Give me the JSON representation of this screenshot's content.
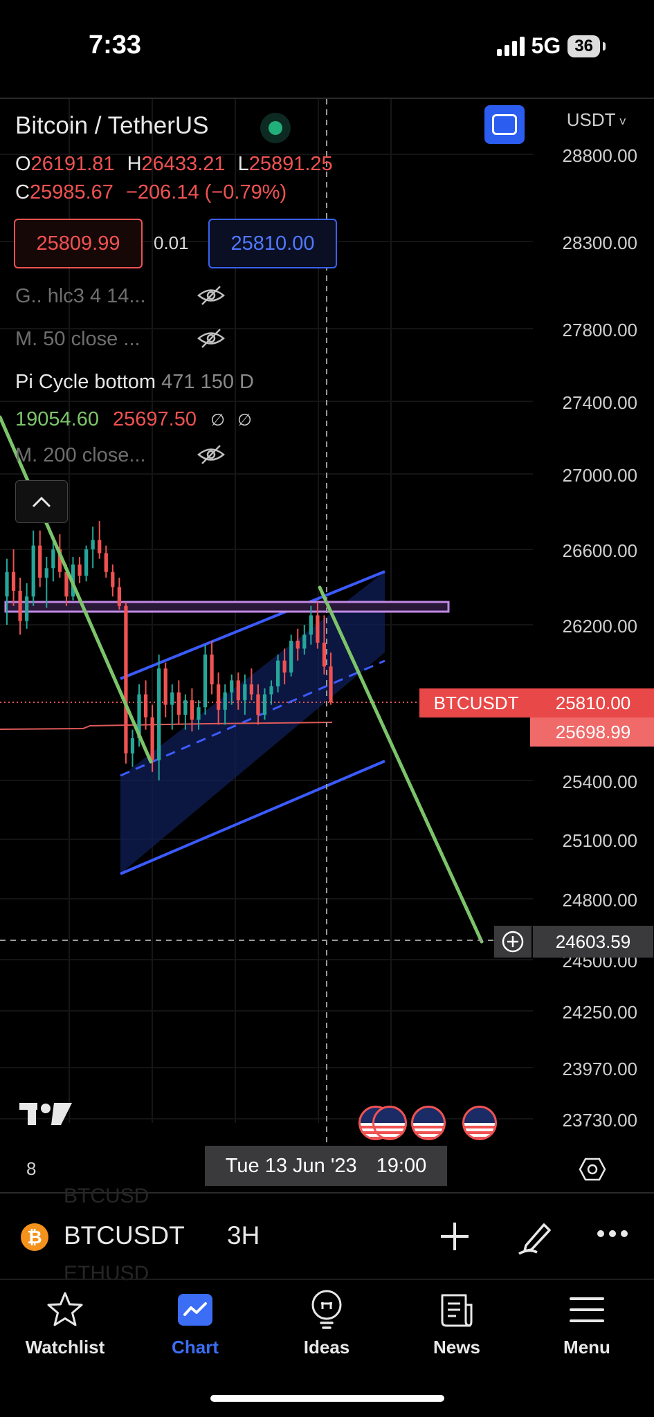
{
  "status_bar": {
    "time": "7:33",
    "network": "5G",
    "battery": "36"
  },
  "symbol_header": {
    "title": "Bitcoin / TetherUS",
    "currency": "USDT",
    "ohlc": {
      "o_label": "O",
      "o": "26191.81",
      "h_label": "H",
      "h": "26433.21",
      "l_label": "L",
      "l": "25891.25",
      "c_label": "C",
      "c": "25985.67",
      "change": "−206.14 (−0.79%)"
    },
    "bid": "25809.99",
    "spread": "0.01",
    "ask": "25810.00"
  },
  "indicators": {
    "ind1": "G.. hlc3 4 14...",
    "ind2": "M. 50 close ...",
    "pi_name": "Pi Cycle bottom",
    "pi_params": "471 150 D",
    "pi_val1": "19054.60",
    "pi_val2": "25697.50",
    "pi_na1": "∅",
    "pi_na2": "∅",
    "ind3": "M. 200 close..."
  },
  "price_axis": {
    "ticks": [
      "28800.00",
      "28300.00",
      "27800.00",
      "27400.00",
      "27000.00",
      "26600.00",
      "26200.00",
      "25400.00",
      "25100.00",
      "24800.00",
      "24500.00",
      "24250.00",
      "23970.00",
      "23730.00"
    ]
  },
  "price_labels": {
    "symbol_tag": "BTCUSDT",
    "last_price": "25810.00",
    "pi_line_price": "25698.99",
    "crosshair_price": "24603.59"
  },
  "time_axis": {
    "left_label": "8",
    "date": "Tue 13 Jun '23",
    "time": "19:00"
  },
  "ghost_symbols": {
    "above": "BTCUSD",
    "below": "ETHUSD"
  },
  "symbol_bar": {
    "symbol": "BTCUSDT",
    "interval": "3H",
    "icon_letter": "₿"
  },
  "tabs": [
    {
      "label": "Watchlist",
      "icon": "star-icon"
    },
    {
      "label": "Chart",
      "icon": "chart-icon"
    },
    {
      "label": "Ideas",
      "icon": "lightbulb-icon"
    },
    {
      "label": "News",
      "icon": "news-icon"
    },
    {
      "label": "Menu",
      "icon": "menu-icon"
    }
  ],
  "active_tab": "Chart",
  "colors": {
    "up": "#26a69a",
    "down": "#f05252",
    "accent": "#2b5ef0",
    "channel": "#3b5bff",
    "trendline": "#7cc46a",
    "resistance": "#c18ae6"
  },
  "chart_data": {
    "type": "candlestick",
    "interval": "3H",
    "ylim": [
      23730,
      28800
    ],
    "y_ticks": [
      28800,
      28300,
      27800,
      27400,
      27000,
      26600,
      26200,
      25400,
      25100,
      24800,
      24500,
      24250,
      23970,
      23730
    ],
    "last_price": 25810.0,
    "pi_cycle_line": 25698.99,
    "crosshair_price": 24603.59,
    "resistance_zone": [
      26260,
      26310
    ],
    "candles": [
      {
        "o": 26350,
        "h": 26550,
        "l": 26200,
        "c": 26480
      },
      {
        "o": 26480,
        "h": 26600,
        "l": 26300,
        "c": 26380
      },
      {
        "o": 26380,
        "h": 26450,
        "l": 26150,
        "c": 26220
      },
      {
        "o": 26220,
        "h": 26420,
        "l": 26180,
        "c": 26350
      },
      {
        "o": 26350,
        "h": 26700,
        "l": 26300,
        "c": 26620
      },
      {
        "o": 26620,
        "h": 26700,
        "l": 26400,
        "c": 26450
      },
      {
        "o": 26450,
        "h": 26560,
        "l": 26290,
        "c": 26500
      },
      {
        "o": 26500,
        "h": 26650,
        "l": 26430,
        "c": 26600
      },
      {
        "o": 26600,
        "h": 26680,
        "l": 26450,
        "c": 26480
      },
      {
        "o": 26480,
        "h": 26520,
        "l": 26300,
        "c": 26350
      },
      {
        "o": 26350,
        "h": 26560,
        "l": 26330,
        "c": 26520
      },
      {
        "o": 26520,
        "h": 26560,
        "l": 26420,
        "c": 26460
      },
      {
        "o": 26460,
        "h": 26620,
        "l": 26430,
        "c": 26600
      },
      {
        "o": 26600,
        "h": 26720,
        "l": 26500,
        "c": 26650
      },
      {
        "o": 26650,
        "h": 26750,
        "l": 26550,
        "c": 26580
      },
      {
        "o": 26580,
        "h": 26620,
        "l": 26450,
        "c": 26480
      },
      {
        "o": 26480,
        "h": 26520,
        "l": 26350,
        "c": 26400
      },
      {
        "o": 26400,
        "h": 26450,
        "l": 26280,
        "c": 26300
      },
      {
        "o": 26300,
        "h": 26320,
        "l": 25500,
        "c": 25560
      },
      {
        "o": 25560,
        "h": 25700,
        "l": 25480,
        "c": 25650
      },
      {
        "o": 25650,
        "h": 25900,
        "l": 25600,
        "c": 25850
      },
      {
        "o": 25850,
        "h": 25920,
        "l": 25700,
        "c": 25750
      },
      {
        "o": 25750,
        "h": 25800,
        "l": 25450,
        "c": 25520
      },
      {
        "o": 25520,
        "h": 26050,
        "l": 25400,
        "c": 25980
      },
      {
        "o": 25980,
        "h": 26010,
        "l": 25750,
        "c": 25800
      },
      {
        "o": 25800,
        "h": 25900,
        "l": 25700,
        "c": 25860
      },
      {
        "o": 25860,
        "h": 25920,
        "l": 25720,
        "c": 25760
      },
      {
        "o": 25760,
        "h": 25850,
        "l": 25700,
        "c": 25820
      },
      {
        "o": 25820,
        "h": 25880,
        "l": 25690,
        "c": 25740
      },
      {
        "o": 25740,
        "h": 25820,
        "l": 25700,
        "c": 25790
      },
      {
        "o": 25790,
        "h": 26100,
        "l": 25760,
        "c": 26050
      },
      {
        "o": 26050,
        "h": 26120,
        "l": 25850,
        "c": 25900
      },
      {
        "o": 25900,
        "h": 25960,
        "l": 25720,
        "c": 25780
      },
      {
        "o": 25780,
        "h": 25900,
        "l": 25720,
        "c": 25860
      },
      {
        "o": 25860,
        "h": 25950,
        "l": 25800,
        "c": 25920
      },
      {
        "o": 25920,
        "h": 25960,
        "l": 25780,
        "c": 25820
      },
      {
        "o": 25820,
        "h": 25950,
        "l": 25760,
        "c": 25900
      },
      {
        "o": 25900,
        "h": 25980,
        "l": 25820,
        "c": 25850
      },
      {
        "o": 25850,
        "h": 25900,
        "l": 25720,
        "c": 25760
      },
      {
        "o": 25760,
        "h": 25880,
        "l": 25740,
        "c": 25850
      },
      {
        "o": 25850,
        "h": 25920,
        "l": 25800,
        "c": 25890
      },
      {
        "o": 25890,
        "h": 26050,
        "l": 25860,
        "c": 26020
      },
      {
        "o": 26020,
        "h": 26080,
        "l": 25900,
        "c": 25960
      },
      {
        "o": 25960,
        "h": 26150,
        "l": 25940,
        "c": 26120
      },
      {
        "o": 26120,
        "h": 26180,
        "l": 26020,
        "c": 26080
      },
      {
        "o": 26080,
        "h": 26200,
        "l": 26050,
        "c": 26150
      },
      {
        "o": 26150,
        "h": 26300,
        "l": 26100,
        "c": 26250
      },
      {
        "o": 26250,
        "h": 26320,
        "l": 26080,
        "c": 26110
      },
      {
        "o": 26110,
        "h": 26250,
        "l": 25950,
        "c": 25990
      },
      {
        "o": 25990,
        "h": 26060,
        "l": 25800,
        "c": 25810
      }
    ]
  }
}
